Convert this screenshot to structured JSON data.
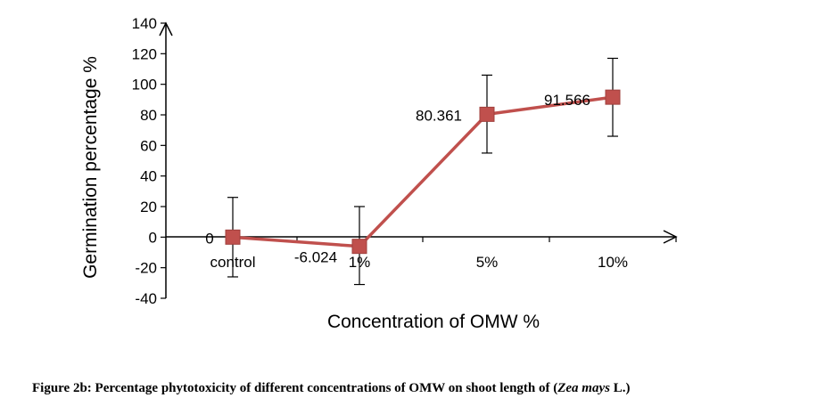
{
  "chart_data": {
    "type": "line",
    "categories": [
      "control",
      "1%",
      "5%",
      "10%"
    ],
    "series": [
      {
        "values": [
          0,
          -6.024,
          80.361,
          91.566
        ],
        "labels": [
          "0",
          "-6.024",
          "80.361",
          "91.566"
        ],
        "error_low": [
          -26,
          -31,
          55,
          66
        ],
        "error_high": [
          26,
          20,
          106,
          117
        ],
        "color": "#c0504d",
        "marker": "square"
      }
    ],
    "xlabel": "Concentration of OMW %",
    "ylabel": "Germination percentage %",
    "ylim": [
      -40,
      140
    ],
    "yticks": [
      -40,
      -20,
      0,
      20,
      40,
      60,
      80,
      100,
      120,
      140
    ],
    "grid": false
  },
  "caption": {
    "prefix": "Figure 2b: Percentage phytotoxicity of different concentrations of OMW on shoot length of (",
    "species": "Zea mays",
    "suffix": " L.)"
  }
}
